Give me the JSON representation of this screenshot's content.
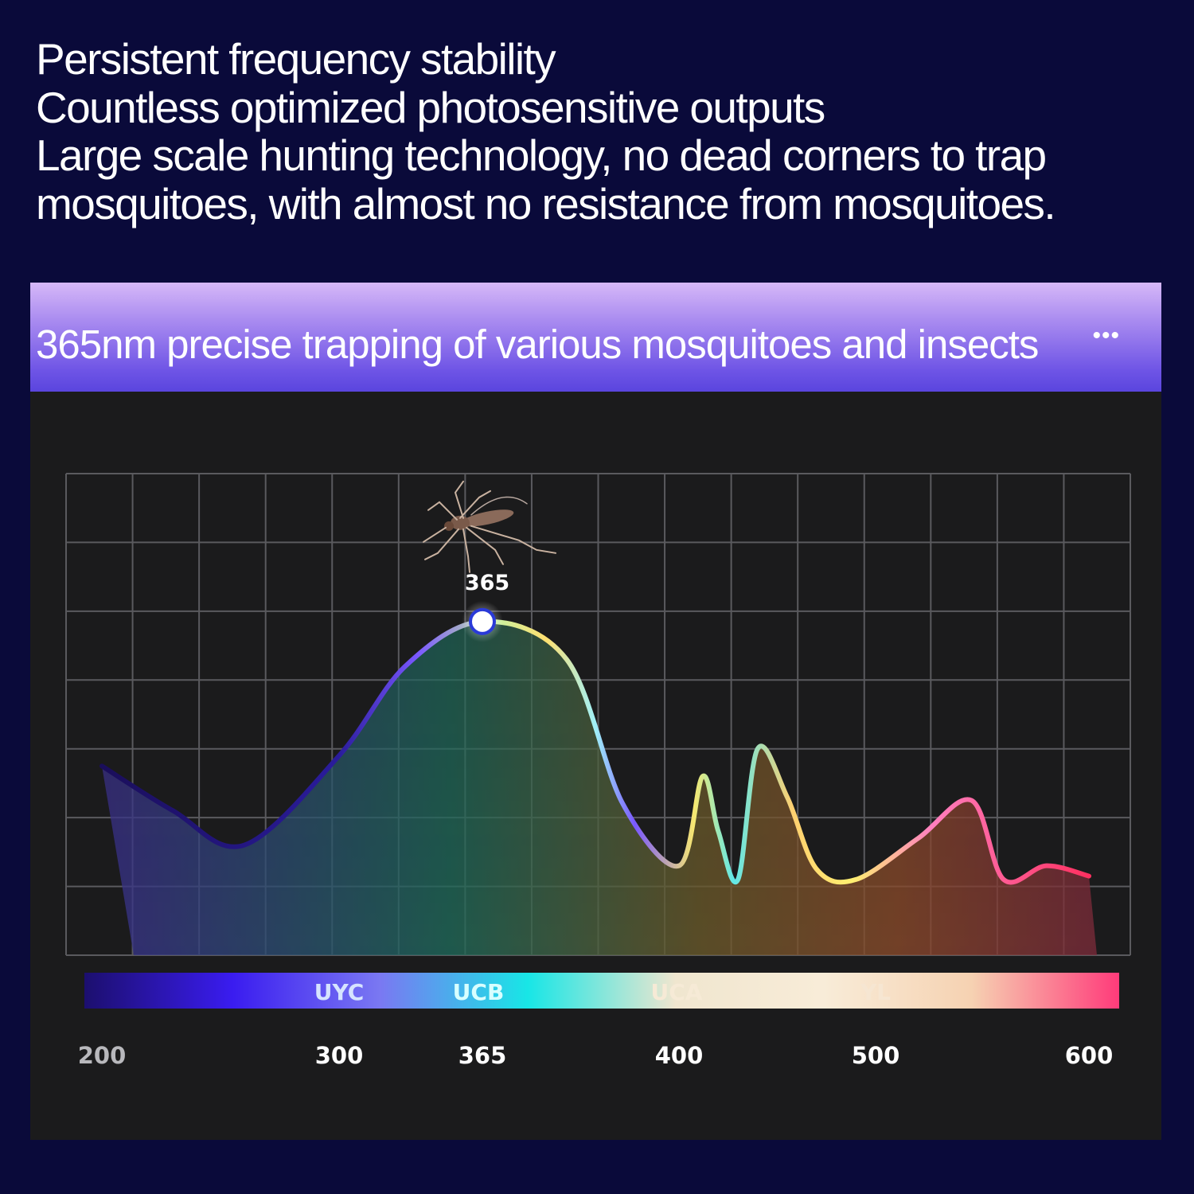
{
  "headline": {
    "lines": [
      "Persistent frequency stability",
      "Countless optimized photosensitive outputs",
      "Large scale hunting technology, no dead corners to trap",
      "mosquitoes, with almost no resistance from mosquitoes."
    ]
  },
  "banner": {
    "title": "365nm precise trapping of various mosquitoes and insects",
    "dots": "•••"
  },
  "colors": {
    "page_background": "#0a0a3a",
    "panel_background": "#1b1b1c",
    "banner_top": "#d6b8f8",
    "banner_bottom": "#5a45de",
    "peak_marker": "#ffffff",
    "peak_marker_ring": "#2a3ad8"
  },
  "icons": {
    "mosquito": "mosquito-icon"
  },
  "chart_data": {
    "type": "line",
    "x_axis_ticks": [
      "200",
      "300",
      "365",
      "400",
      "500",
      "600"
    ],
    "x_axis_type": "categorical-position",
    "y_axis_labels": "none",
    "grid": true,
    "band_labels": [
      "UYC",
      "UCB",
      "UCA",
      "YL"
    ],
    "band_gradient_colors": [
      "#1c0f6e",
      "#3a1cf0",
      "#7a78f2",
      "#18e6e6",
      "#f0e6cf",
      "#f8ecd8",
      "#f6d2b2",
      "#ff3b7a"
    ],
    "peak": {
      "label": "365",
      "x": 365
    },
    "series": [
      {
        "x": [
          200,
          230,
          260,
          300,
          330,
          365,
          380,
          390,
          400,
          412,
          420,
          430,
          440,
          455,
          470,
          490,
          520,
          545,
          560,
          580,
          600
        ],
        "y": [
          5.5,
          4.2,
          3.2,
          5.8,
          8.4,
          9.7,
          8.6,
          4.4,
          2.6,
          5.2,
          3.6,
          2.2,
          6.0,
          4.6,
          2.5,
          2.2,
          3.4,
          4.5,
          2.2,
          2.6,
          2.3
        ]
      }
    ],
    "ylim": [
      0,
      14
    ]
  }
}
